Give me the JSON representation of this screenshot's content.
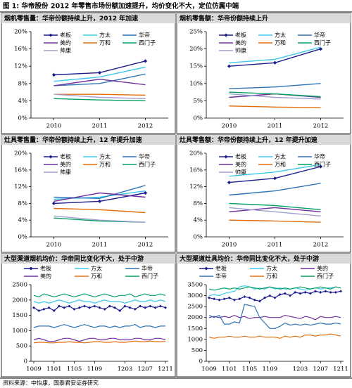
{
  "title": "图 1: 华帝股份 2012 年零售市场份额加速提升，均价变化不大，定位仿属中端",
  "source": "资料来源：中怡康，国泰君安证券研究",
  "chart_data": [
    {
      "type": "line",
      "title": "烟机零售量：华帝份额持续上升，2012 年加速",
      "categories": [
        "2010",
        "2011",
        "2012"
      ],
      "legend": "inside",
      "ylim": [
        0,
        20
      ],
      "yticks": [
        {
          "value": 0,
          "label": "0%"
        },
        {
          "value": 4,
          "label": "4%"
        },
        {
          "value": 8,
          "label": "8%"
        },
        {
          "value": 12,
          "label": "12%"
        },
        {
          "value": 16,
          "label": "16%"
        },
        {
          "value": 20,
          "label": "20%"
        }
      ],
      "series": [
        {
          "name": "老板",
          "color": "#1c1c8c",
          "marker": "diamond",
          "values": [
            10,
            10.5,
            13.2
          ]
        },
        {
          "name": "方太",
          "color": "#3cc8ec",
          "values": [
            8.5,
            9.5,
            11.8
          ]
        },
        {
          "name": "华帝",
          "color": "#2e75b6",
          "values": [
            7.5,
            8,
            10.2
          ]
        },
        {
          "name": "美的",
          "color": "#7030a0",
          "values": [
            7.5,
            9,
            7.7
          ]
        },
        {
          "name": "万和",
          "color": "#e36c0a",
          "values": [
            5.5,
            5.5,
            5.3
          ]
        },
        {
          "name": "西门子",
          "color": "#00a060",
          "values": [
            4.5,
            4.2,
            4
          ]
        },
        {
          "name": "帅康",
          "color": "#9fa0d0",
          "values": [
            5.5,
            4.8,
            4.5
          ]
        }
      ]
    },
    {
      "type": "line",
      "title": "烟机零售额：华帝份额持续上升",
      "categories": [
        "2010",
        "2011",
        "2012"
      ],
      "legend": "inside",
      "ylim": [
        0,
        25
      ],
      "yticks": [
        {
          "value": 0,
          "label": "0%"
        },
        {
          "value": 5,
          "label": "5%"
        },
        {
          "value": 10,
          "label": "10%"
        },
        {
          "value": 15,
          "label": "15%"
        },
        {
          "value": 20,
          "label": "20%"
        },
        {
          "value": 25,
          "label": "25%"
        }
      ],
      "series": [
        {
          "name": "老板",
          "color": "#1c1c8c",
          "marker": "diamond",
          "values": [
            15,
            16,
            20
          ]
        },
        {
          "name": "方太",
          "color": "#3cc8ec",
          "values": [
            16,
            17,
            20.5
          ]
        },
        {
          "name": "华帝",
          "color": "#2e75b6",
          "values": [
            8.5,
            9,
            10
          ]
        },
        {
          "name": "美的",
          "color": "#7030a0",
          "values": [
            6,
            7,
            6
          ]
        },
        {
          "name": "万和",
          "color": "#e36c0a",
          "values": [
            3.5,
            3.2,
            3
          ]
        },
        {
          "name": "西门子",
          "color": "#00a060",
          "values": [
            7.5,
            7,
            6.2
          ]
        },
        {
          "name": "帅康",
          "color": "#9fa0d0",
          "values": [
            7,
            6,
            5.5
          ]
        }
      ]
    },
    {
      "type": "line",
      "title": "灶具零售量：华帝份额持续上升，12 年提升加速",
      "categories": [
        "2010",
        "2011",
        "2012"
      ],
      "legend": "inside",
      "ylim": [
        0,
        20
      ],
      "yticks": [
        {
          "value": 0,
          "label": "0%"
        },
        {
          "value": 4,
          "label": "4%"
        },
        {
          "value": 8,
          "label": "8%"
        },
        {
          "value": 12,
          "label": "12%"
        },
        {
          "value": 16,
          "label": "16%"
        },
        {
          "value": 20,
          "label": "20%"
        }
      ],
      "series": [
        {
          "name": "老板",
          "color": "#1c1c8c",
          "marker": "diamond",
          "values": [
            8,
            8.5,
            10.5
          ]
        },
        {
          "name": "方太",
          "color": "#3cc8ec",
          "values": [
            9,
            9.5,
            11
          ]
        },
        {
          "name": "华帝",
          "color": "#2e75b6",
          "values": [
            9.5,
            9.2,
            12.3
          ]
        },
        {
          "name": "美的",
          "color": "#7030a0",
          "values": [
            8.5,
            10.5,
            9.5
          ]
        },
        {
          "name": "万和",
          "color": "#e36c0a",
          "values": [
            6.8,
            6.5,
            5.8
          ]
        },
        {
          "name": "西门子",
          "color": "#00a060",
          "values": [
            4.5,
            3.8,
            3.5
          ]
        },
        {
          "name": "帅康",
          "color": "#9fa0d0",
          "values": [
            5,
            4,
            3.5
          ]
        }
      ]
    },
    {
      "type": "line",
      "title": "灶具零售额：华帝份额持续上升，12 年提升加速",
      "categories": [
        "2010",
        "2011",
        "2012"
      ],
      "legend": "inside",
      "ylim": [
        0,
        20
      ],
      "yticks": [
        {
          "value": 0,
          "label": "0%"
        },
        {
          "value": 4,
          "label": "4%"
        },
        {
          "value": 8,
          "label": "8%"
        },
        {
          "value": 12,
          "label": "12%"
        },
        {
          "value": 16,
          "label": "16%"
        },
        {
          "value": 20,
          "label": "20%"
        }
      ],
      "series": [
        {
          "name": "老板",
          "color": "#1c1c8c",
          "marker": "diamond",
          "values": [
            13,
            14,
            16.8
          ]
        },
        {
          "name": "方太",
          "color": "#3cc8ec",
          "values": [
            14.5,
            15.5,
            17.3
          ]
        },
        {
          "name": "华帝",
          "color": "#2e75b6",
          "values": [
            10,
            11,
            12.8
          ]
        },
        {
          "name": "美的",
          "color": "#7030a0",
          "values": [
            6,
            7,
            6
          ]
        },
        {
          "name": "万和",
          "color": "#e36c0a",
          "values": [
            4,
            3.8,
            3.5
          ]
        },
        {
          "name": "西门子",
          "color": "#00a060",
          "values": [
            8,
            7.5,
            6.5
          ]
        },
        {
          "name": "帅康",
          "color": "#9fa0d0",
          "values": [
            7,
            6,
            5
          ]
        }
      ]
    },
    {
      "type": "line",
      "title": "大型渠道烟机均价：华帝同比变化不大，处于中游",
      "categories": [
        "1009",
        null,
        null,
        null,
        "1101",
        null,
        null,
        null,
        "1105",
        null,
        null,
        null,
        "1109",
        null,
        null,
        null,
        null,
        null,
        "1203",
        null,
        null,
        null,
        "1207",
        null,
        null,
        null,
        "1211"
      ],
      "legend": "top",
      "ylim": [
        0,
        2500
      ],
      "yticks": [
        0,
        500,
        1000,
        1500,
        2000,
        2500
      ],
      "series": [
        {
          "name": "老板",
          "color": "#1c1c8c",
          "marker": "diamond",
          "values": [
            1750,
            1650,
            1700,
            1750,
            1650,
            1800,
            1750,
            1800,
            1700,
            1750,
            1800,
            1750,
            1800,
            1750,
            1700,
            1800,
            1750,
            1650,
            1800,
            1750,
            1700,
            1800,
            1750,
            1800,
            1750,
            1800,
            1750
          ]
        },
        {
          "name": "方太",
          "color": "#3cc8ec",
          "values": [
            1950,
            1900,
            1950,
            1900,
            1950,
            2000,
            1950,
            1900,
            1950,
            2000,
            1950,
            1950,
            1900,
            1950,
            2000,
            1950,
            1950,
            1950,
            1900,
            1950,
            2000,
            1950,
            1950,
            2000,
            1950,
            2000,
            1950
          ]
        },
        {
          "name": "华帝",
          "color": "#2e75b6",
          "values": [
            1100,
            1150,
            1150,
            1150,
            1100,
            1150,
            1200,
            1150,
            1100,
            1150,
            1200,
            1150,
            1100,
            1150,
            1150,
            1100,
            1150,
            1100,
            1150,
            1150,
            1200,
            1100,
            1150,
            1150,
            1100,
            1150,
            1150
          ]
        },
        {
          "name": "美的",
          "color": "#7030a0",
          "values": [
            700,
            750,
            700,
            650,
            650,
            700,
            750,
            750,
            700,
            650,
            700,
            750,
            750,
            700,
            700,
            750,
            750,
            700,
            700,
            700,
            750,
            750,
            700,
            700,
            750,
            750,
            700
          ]
        },
        {
          "name": "万和",
          "color": "#e36c0a",
          "values": [
            600,
            620,
            620,
            600,
            600,
            620,
            620,
            640,
            620,
            620,
            600,
            620,
            640,
            640,
            620,
            620,
            640,
            620,
            620,
            640,
            660,
            640,
            640,
            660,
            640,
            640,
            650
          ]
        },
        {
          "name": "西门子",
          "color": "#00a060",
          "values": [
            2150,
            2100,
            2200,
            2150,
            2100,
            2150,
            2200,
            2150,
            2100,
            2150,
            2200,
            2150,
            2100,
            2150,
            2200,
            2150,
            2100,
            2150,
            2150,
            2200,
            2100,
            2150,
            2200,
            2150,
            2150,
            2200,
            2150
          ]
        }
      ]
    },
    {
      "type": "line",
      "title": "大型渠道灶具均价：华帝同比变化不大，处于中游",
      "categories": [
        "1009",
        null,
        null,
        null,
        "1101",
        null,
        null,
        null,
        "1105",
        null,
        null,
        null,
        "1109",
        null,
        null,
        null,
        null,
        null,
        "1203",
        null,
        null,
        null,
        "1207",
        null,
        null,
        null,
        "1211"
      ],
      "legend": "top",
      "ylim": [
        0,
        3500
      ],
      "yticks": [
        0,
        500,
        1000,
        1500,
        2000,
        2500,
        3000,
        3500
      ],
      "series": [
        {
          "name": "老板",
          "color": "#1c1c8c",
          "marker": "diamond",
          "values": [
            2900,
            2850,
            2800,
            2850,
            2900,
            2800,
            2850,
            2950,
            2900,
            2800,
            2750,
            2900,
            3000,
            2900,
            3050,
            3100,
            3000,
            3150,
            3100,
            3150,
            3100,
            3200,
            3150,
            3200,
            3150,
            3150,
            3200
          ]
        },
        {
          "name": "方太",
          "color": "#3cc8ec",
          "values": [
            3000,
            3050,
            3000,
            3100,
            3150,
            3200,
            3400,
            3450,
            3400,
            3300,
            3350,
            3300,
            3400,
            3300,
            3350,
            3300,
            3300,
            3350,
            3300,
            3250,
            3300,
            3350,
            3300,
            3350,
            3350,
            3400,
            3350
          ]
        },
        {
          "name": "美的",
          "color": "#7030a0",
          "values": [
            2000,
            2050,
            2000,
            2050,
            2000,
            2100,
            2000,
            2050,
            1950,
            2000,
            2000,
            2050,
            2000,
            2000,
            2000,
            2100,
            2050,
            2000,
            1950,
            2050,
            2000,
            1900,
            2050,
            2000,
            2000,
            2050,
            2000
          ]
        },
        {
          "name": "华帝",
          "color": "#2e75b6",
          "values": [
            2100,
            2000,
            2100,
            1700,
            1700,
            1800,
            1750,
            2600,
            2550,
            2500,
            2000,
            1750,
            1500,
            1500,
            1600,
            1750,
            1650,
            1700,
            1650,
            1700,
            1650,
            1700,
            1750,
            1700,
            1700,
            1750,
            1700
          ]
        },
        {
          "name": "万和",
          "color": "#e36c0a",
          "values": [
            1100,
            1050,
            1100,
            1100,
            1150,
            1100,
            1100,
            1150,
            1100,
            1100,
            1150,
            1100,
            1100,
            1100,
            1050,
            1150,
            1100,
            1150,
            1100,
            1200,
            1200,
            1150,
            1200,
            1200,
            1250,
            1200,
            1150
          ]
        },
        {
          "name": "西门子",
          "color": "#00a060",
          "values": [
            3300,
            3250,
            3300,
            3350,
            3300,
            3350,
            3300,
            3350,
            3400,
            3350,
            3300,
            3350,
            3400,
            3350,
            3300,
            3350,
            3300,
            3350,
            3400,
            3350,
            3300,
            3350,
            3400,
            3350,
            3300,
            3400,
            3350
          ]
        }
      ]
    }
  ]
}
